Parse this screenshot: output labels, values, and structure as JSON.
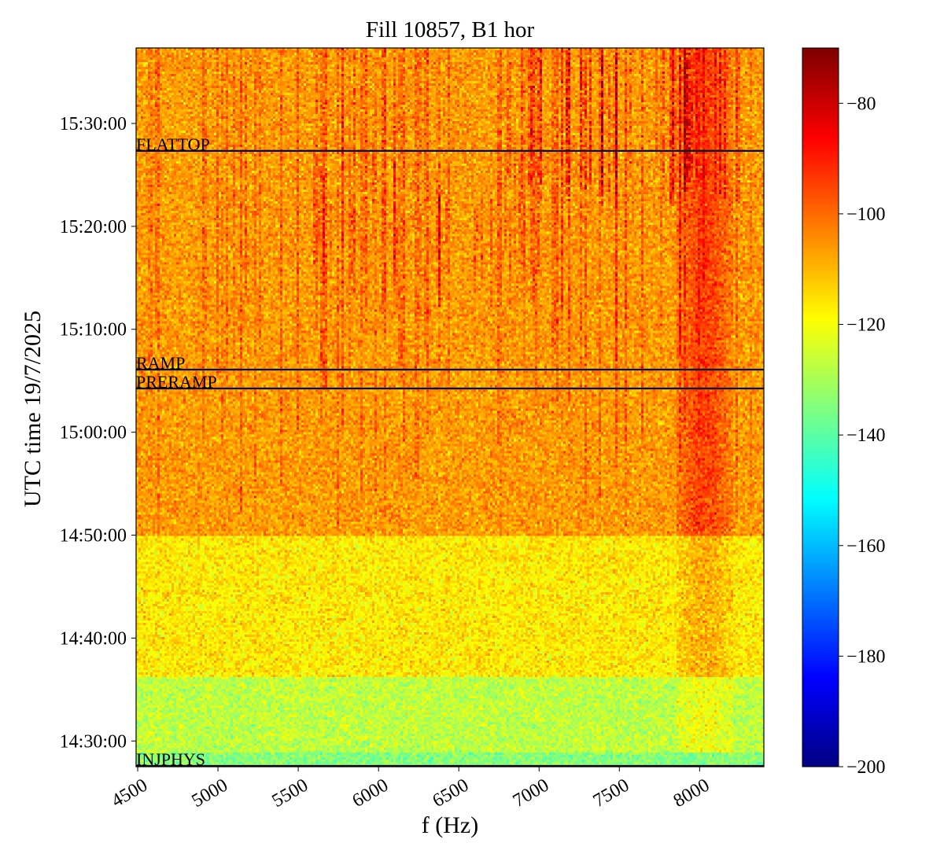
{
  "chart_data": {
    "type": "heatmap",
    "title": "Fill 10857, B1 hor",
    "xlabel": "f (Hz)",
    "ylabel": "UTC time 19/7/2025",
    "xlim": [
      4490,
      8400
    ],
    "ylim": [
      "14:27:30",
      "15:37:20"
    ],
    "x_ticks": [
      4500,
      5000,
      5500,
      6000,
      6500,
      7000,
      7500,
      8000
    ],
    "y_ticks": [
      "14:30:00",
      "14:40:00",
      "14:50:00",
      "15:00:00",
      "15:10:00",
      "15:20:00",
      "15:30:00"
    ],
    "colormap": "jet",
    "colorbar": {
      "range": [
        -200,
        -70
      ],
      "ticks": [
        -80,
        -100,
        -120,
        -140,
        -160,
        -180,
        -200
      ]
    },
    "background_levels": [
      {
        "from": "14:27:30",
        "to": "14:29:00",
        "level": -134
      },
      {
        "from": "14:29:00",
        "to": "14:36:20",
        "level": -127
      },
      {
        "from": "14:36:20",
        "to": "14:50:00",
        "level": -116
      },
      {
        "from": "14:50:00",
        "to": "15:37:20",
        "level": -106
      }
    ],
    "high_activity_band_hz": [
      7850,
      8200
    ],
    "events": [
      {
        "label": "FLATTOP",
        "time": "15:27:20"
      },
      {
        "label": "RAMP",
        "time": "15:06:05"
      },
      {
        "label": "PRERAMP",
        "time": "15:04:15"
      },
      {
        "label": "INJPHYS",
        "time": "14:27:30"
      }
    ]
  }
}
